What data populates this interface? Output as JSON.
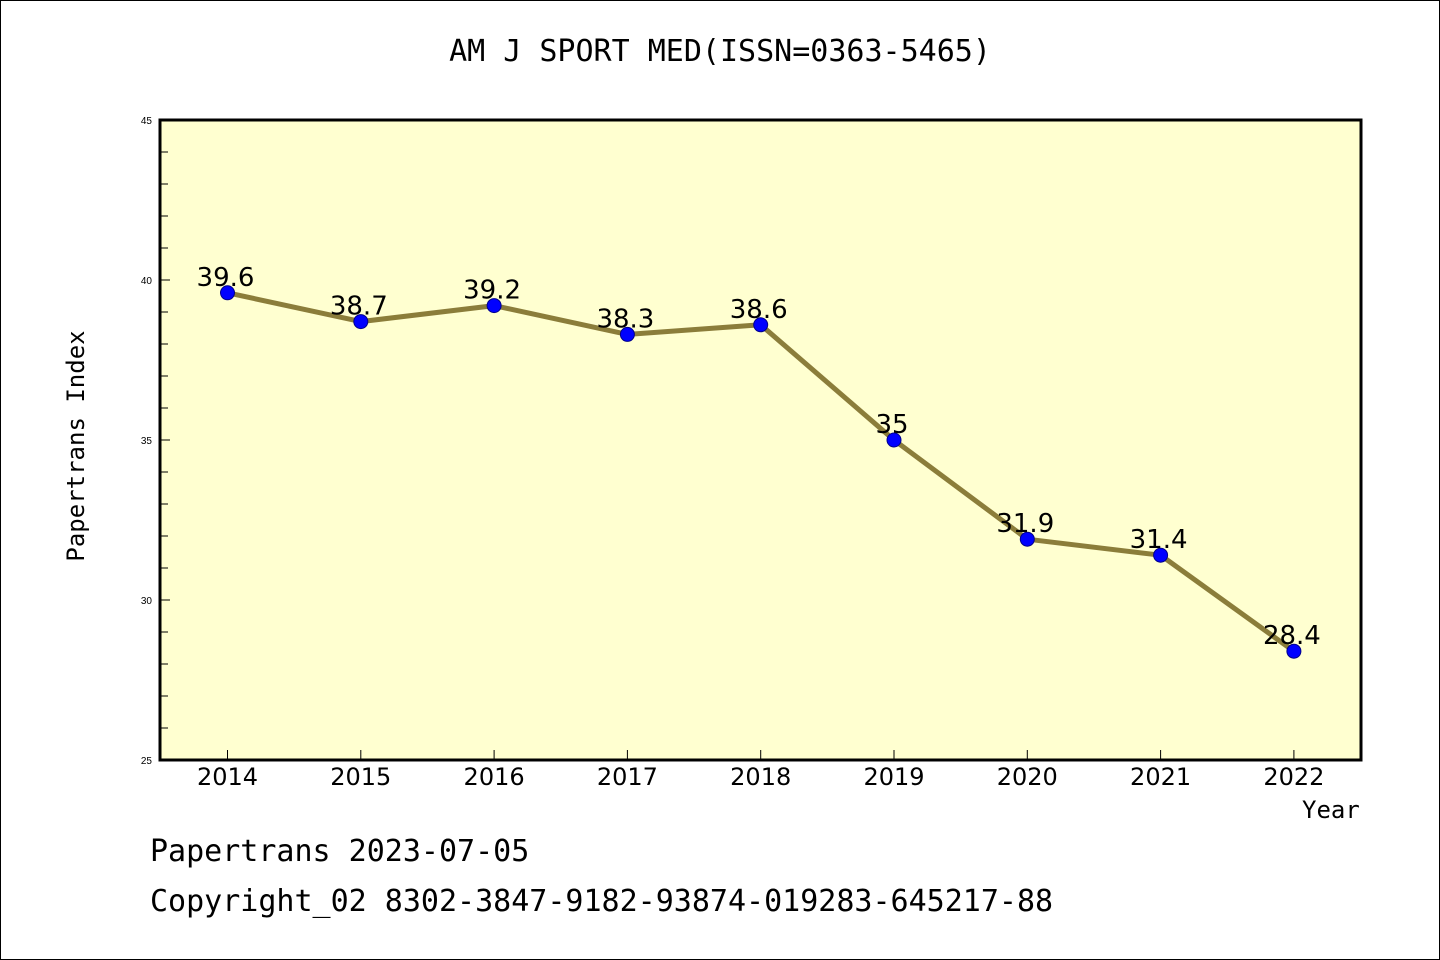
{
  "chart_data": {
    "type": "line",
    "title": "AM J SPORT MED(ISSN=0363-5465)",
    "xlabel": "Year",
    "ylabel": "Papertrans Index",
    "categories": [
      "2014",
      "2015",
      "2016",
      "2017",
      "2018",
      "2019",
      "2020",
      "2021",
      "2022"
    ],
    "series": [
      {
        "values": [
          39.6,
          38.7,
          39.2,
          38.3,
          38.6,
          35,
          31.9,
          31.4,
          28.4
        ],
        "labels": [
          "39.6",
          "38.7",
          "39.2",
          "38.3",
          "38.6",
          "35",
          "31.9",
          "31.4",
          "28.4"
        ],
        "line_color": "#8b7d3a",
        "marker_color": "#0000ff"
      }
    ],
    "ylim": [
      25,
      45
    ],
    "yticks": [
      "25",
      "30",
      "35",
      "40",
      "45"
    ],
    "grid": false,
    "plot_background": "#ffffd0"
  },
  "footer": {
    "date_line": "Papertrans 2023-07-05",
    "copyright_line": "Copyright_02 8302-3847-9182-93874-019283-645217-88"
  }
}
